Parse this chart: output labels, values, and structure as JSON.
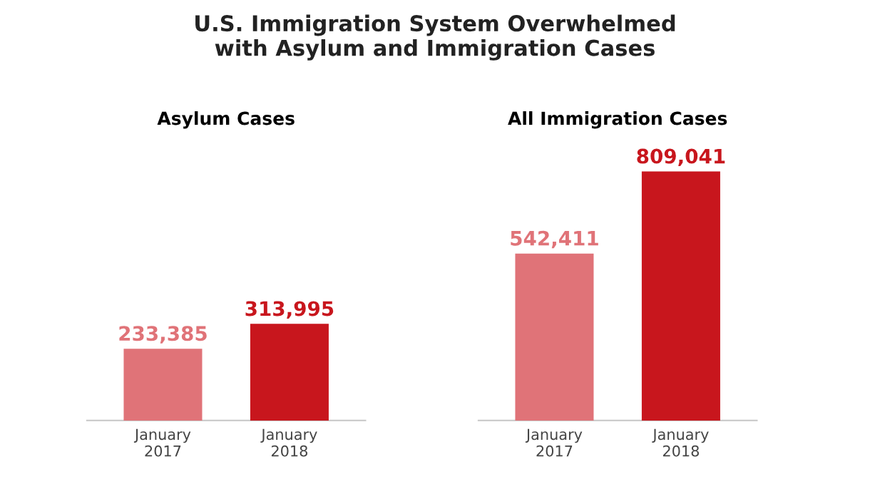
{
  "chart_data": [
    {
      "type": "bar",
      "title": "U.S. Immigration System Overwhelmed\nwith Asylum and Immigration Cases",
      "subtitle": "Asylum Cases",
      "categories": [
        "January\n2017",
        "January\n2018"
      ],
      "values": [
        233385,
        313995
      ],
      "value_labels": [
        "233,385",
        "313,995"
      ],
      "colors": [
        "#e07378",
        "#c8161d"
      ],
      "tick_labels": "x"
    },
    {
      "type": "bar",
      "subtitle": "All Immigration Cases",
      "categories": [
        "January\n2017",
        "January\n2018"
      ],
      "values": [
        542411,
        809041
      ],
      "value_labels": [
        "542,411",
        "809,041"
      ],
      "colors": [
        "#e07378",
        "#c8161d"
      ],
      "tick_labels": "x"
    }
  ]
}
